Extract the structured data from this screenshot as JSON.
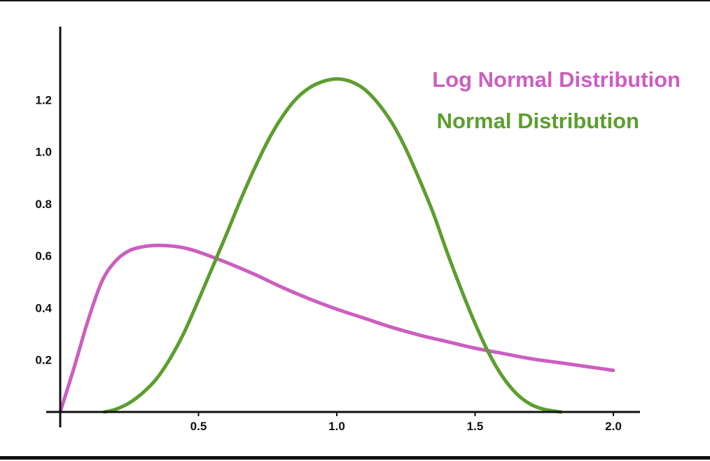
{
  "chart_data": {
    "type": "line",
    "title": "",
    "xlabel": "",
    "ylabel": "",
    "xlim": [
      0,
      2.0
    ],
    "ylim": [
      0,
      1.4
    ],
    "grid": false,
    "legend_position": "top-right",
    "x_ticks": [
      {
        "value": 0.5,
        "label": "0.5"
      },
      {
        "value": 1.0,
        "label": "1.0"
      },
      {
        "value": 1.5,
        "label": "1.5"
      },
      {
        "value": 2.0,
        "label": "2.0"
      }
    ],
    "y_ticks": [
      {
        "value": 0.2,
        "label": "0.2"
      },
      {
        "value": 0.4,
        "label": "0.4"
      },
      {
        "value": 0.6,
        "label": "0.6"
      },
      {
        "value": 0.8,
        "label": "0.8"
      },
      {
        "value": 1.0,
        "label": "1.0"
      },
      {
        "value": 1.2,
        "label": "1.2"
      }
    ],
    "series": [
      {
        "name": "Log Normal Distribution",
        "color": "#cc5ec0",
        "points": [
          [
            0.0,
            0.0
          ],
          [
            0.05,
            0.17
          ],
          [
            0.1,
            0.35
          ],
          [
            0.15,
            0.5
          ],
          [
            0.2,
            0.58
          ],
          [
            0.25,
            0.62
          ],
          [
            0.3,
            0.635
          ],
          [
            0.35,
            0.64
          ],
          [
            0.4,
            0.638
          ],
          [
            0.45,
            0.63
          ],
          [
            0.5,
            0.615
          ],
          [
            0.6,
            0.575
          ],
          [
            0.7,
            0.53
          ],
          [
            0.8,
            0.48
          ],
          [
            0.9,
            0.435
          ],
          [
            1.0,
            0.395
          ],
          [
            1.1,
            0.36
          ],
          [
            1.2,
            0.325
          ],
          [
            1.3,
            0.295
          ],
          [
            1.4,
            0.27
          ],
          [
            1.5,
            0.245
          ],
          [
            1.6,
            0.225
          ],
          [
            1.7,
            0.205
          ],
          [
            1.8,
            0.19
          ],
          [
            1.9,
            0.175
          ],
          [
            2.0,
            0.16
          ]
        ]
      },
      {
        "name": "Normal Distribution",
        "color": "#5c9e2e",
        "points": [
          [
            0.16,
            0.0
          ],
          [
            0.2,
            0.01
          ],
          [
            0.25,
            0.035
          ],
          [
            0.3,
            0.075
          ],
          [
            0.35,
            0.13
          ],
          [
            0.4,
            0.21
          ],
          [
            0.45,
            0.31
          ],
          [
            0.5,
            0.43
          ],
          [
            0.55,
            0.555
          ],
          [
            0.6,
            0.68
          ],
          [
            0.65,
            0.81
          ],
          [
            0.7,
            0.93
          ],
          [
            0.75,
            1.04
          ],
          [
            0.8,
            1.13
          ],
          [
            0.85,
            1.2
          ],
          [
            0.9,
            1.245
          ],
          [
            0.95,
            1.27
          ],
          [
            1.0,
            1.28
          ],
          [
            1.05,
            1.27
          ],
          [
            1.1,
            1.24
          ],
          [
            1.15,
            1.185
          ],
          [
            1.2,
            1.11
          ],
          [
            1.25,
            1.01
          ],
          [
            1.3,
            0.89
          ],
          [
            1.35,
            0.76
          ],
          [
            1.4,
            0.61
          ],
          [
            1.45,
            0.47
          ],
          [
            1.5,
            0.34
          ],
          [
            1.55,
            0.225
          ],
          [
            1.6,
            0.135
          ],
          [
            1.65,
            0.07
          ],
          [
            1.7,
            0.03
          ],
          [
            1.75,
            0.01
          ],
          [
            1.81,
            0.0
          ]
        ]
      }
    ]
  },
  "legend": {
    "items": [
      {
        "label": "Log Normal Distribution",
        "color": "#cc5ec0"
      },
      {
        "label": "Normal Distribution",
        "color": "#5c9e2e"
      }
    ]
  }
}
